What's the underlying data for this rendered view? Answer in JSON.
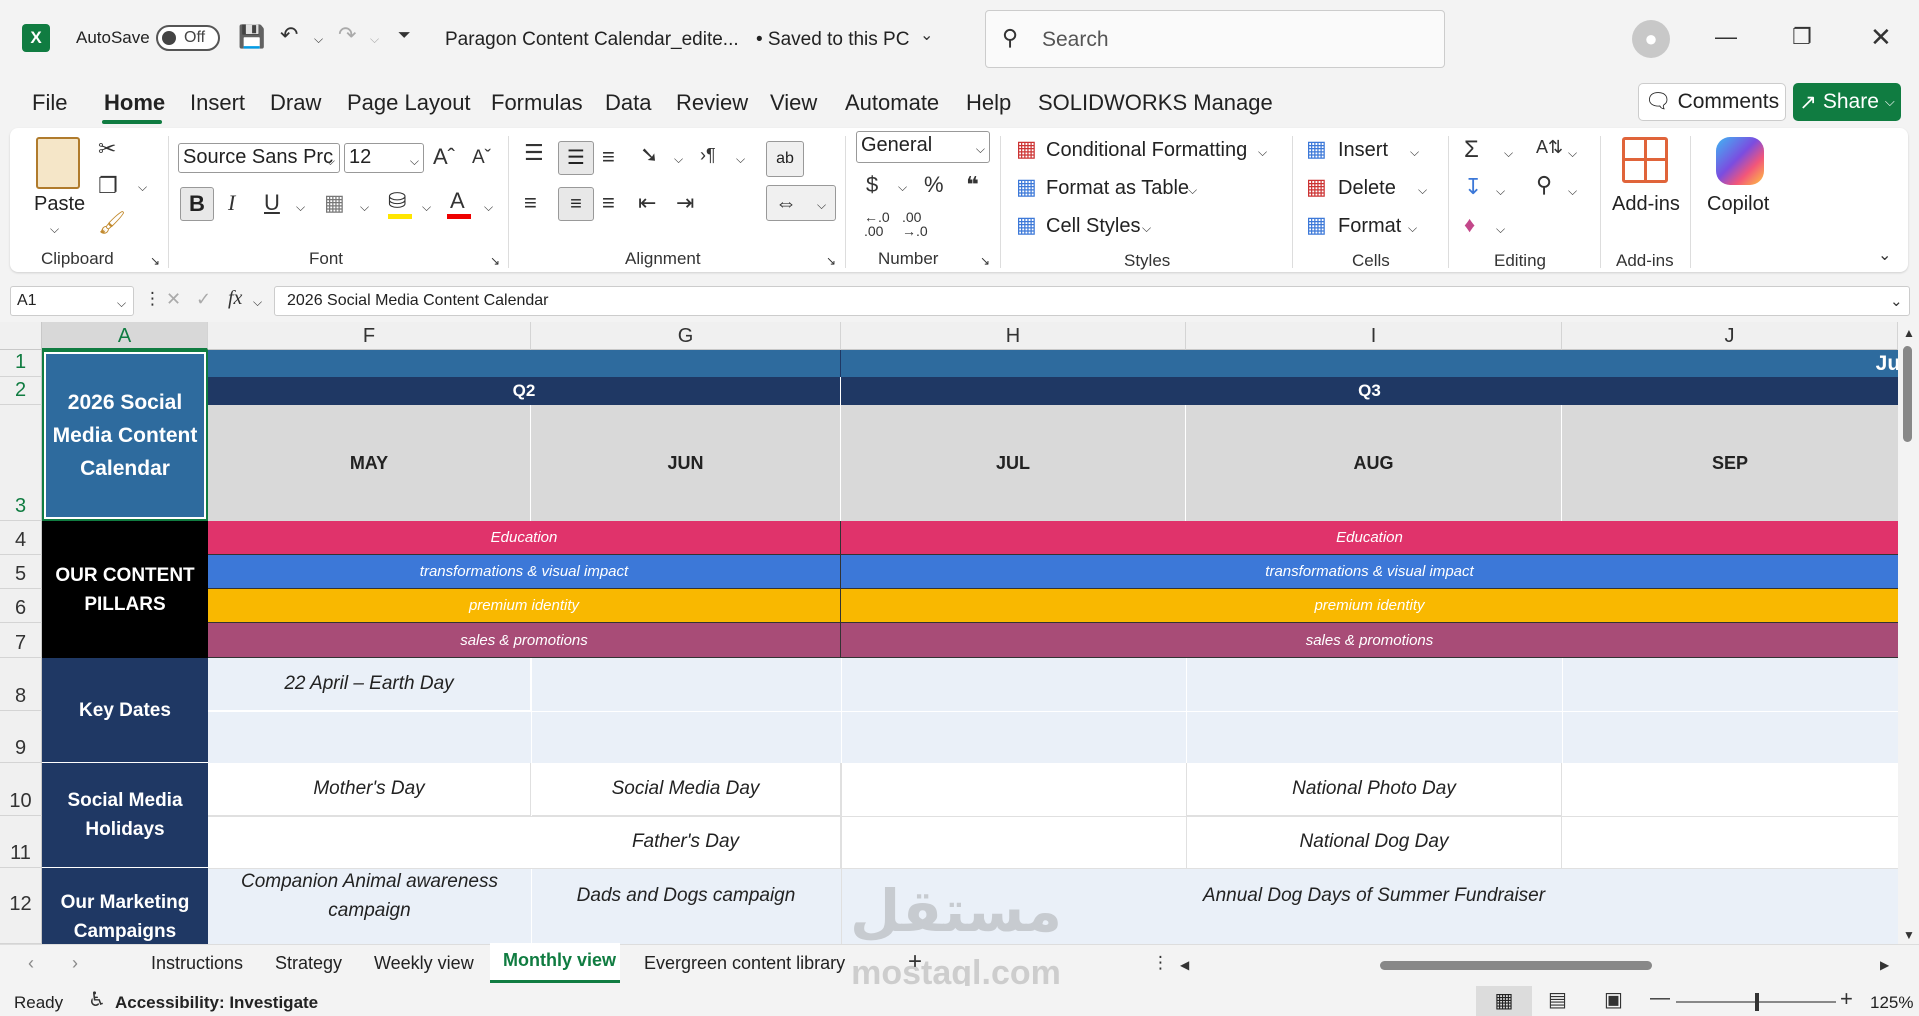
{
  "titlebar": {
    "autosave_label": "AutoSave",
    "autosave_state": "Off",
    "doc_title": "Paragon Content Calendar_edite...",
    "save_status": "• Saved to this PC",
    "search_placeholder": "Search"
  },
  "menu": {
    "tabs": [
      "File",
      "Home",
      "Insert",
      "Draw",
      "Page Layout",
      "Formulas",
      "Data",
      "Review",
      "View",
      "Automate",
      "Help",
      "SOLIDWORKS Manage"
    ],
    "comments_label": "Comments",
    "share_label": "Share"
  },
  "ribbon": {
    "clipboard": {
      "paste_label": "Paste",
      "group_label": "Clipboard"
    },
    "font": {
      "font_name": "Source Sans Prc",
      "font_size": "12",
      "group_label": "Font",
      "bold": "B",
      "italic": "I",
      "underline": "U"
    },
    "alignment": {
      "group_label": "Alignment"
    },
    "number": {
      "format": "General",
      "group_label": "Number"
    },
    "styles": {
      "conditional_formatting": "Conditional Formatting",
      "format_as_table": "Format as Table",
      "cell_styles": "Cell Styles",
      "group_label": "Styles"
    },
    "cells": {
      "insert": "Insert",
      "delete": "Delete",
      "format": "Format",
      "group_label": "Cells"
    },
    "editing": {
      "group_label": "Editing"
    },
    "addins": {
      "addins_label": "Add-ins",
      "group_label": "Add-ins"
    },
    "copilot": {
      "label": "Copilot"
    }
  },
  "formula_bar": {
    "name_box": "A1",
    "content": "2026 Social Media Content Calendar"
  },
  "grid": {
    "columns": [
      "A",
      "F",
      "G",
      "H",
      "I",
      "J"
    ],
    "rows": [
      "1",
      "2",
      "3",
      "4",
      "5",
      "6",
      "7",
      "8",
      "9",
      "10",
      "11",
      "12"
    ],
    "a_title": "2026 Social Media Content Calendar",
    "quarter_q2": "Q2",
    "quarter_q3": "Q3",
    "month_overflow": "Jul",
    "months": [
      "MAY",
      "JUN",
      "JUL",
      "AUG",
      "SEP"
    ],
    "pillars_label": "OUR CONTENT PILLARS",
    "pillars": [
      "Education",
      "transformations & visual impact",
      "premium identity",
      "sales & promotions"
    ],
    "pillar_colors": [
      "#e0336b",
      "#3c78d8",
      "#f9b800",
      "#a84c77"
    ],
    "key_dates_label": "Key Dates",
    "key_date_may": "22 April – Earth Day",
    "holidays_label": "Social Media Holidays",
    "holiday_may": "Mother's Day",
    "holiday_jun_1": "Social Media Day",
    "holiday_jun_2": "Father's Day",
    "holiday_aug_1": "National Photo Day",
    "holiday_aug_2": "National Dog Day",
    "campaigns_label": "Our Marketing Campaigns",
    "campaign_may": "Companion Animal awareness campaign",
    "campaign_jun": "Dads and Dogs campaign",
    "campaign_aug": "Annual Dog Days of Summer Fundraiser"
  },
  "sheet_tabs": [
    "Instructions",
    "Strategy",
    "Weekly view",
    "Monthly view",
    "Evergreen content library"
  ],
  "active_sheet": "Monthly view",
  "watermark": {
    "arabic": "مستقل",
    "latin": "mostaql.com"
  },
  "status": {
    "ready": "Ready",
    "accessibility": "Accessibility: Investigate",
    "zoom": "125%"
  },
  "colors": {
    "excel_green": "#107c41",
    "header_blue": "#2e6b9e",
    "dark_navy": "#1f3864"
  }
}
